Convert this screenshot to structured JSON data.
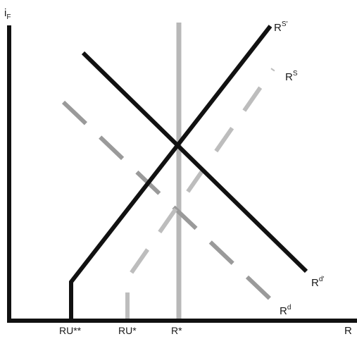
{
  "axes": {
    "y_label_main": "i",
    "y_label_sub": "F",
    "x_label": "R"
  },
  "ticks": {
    "ru_double_star": "RU**",
    "ru_star": "RU*",
    "r_star": "R*"
  },
  "curves": {
    "rs_prime": {
      "base": "R",
      "sup": "S′"
    },
    "rs": {
      "base": "R",
      "sup": "S"
    },
    "rd_prime": {
      "base": "R",
      "sup": "d′"
    },
    "rd": {
      "base": "R",
      "sup": "d"
    }
  },
  "colors": {
    "axis": "#111111",
    "solid_curve": "#111111",
    "dashed_curve": "#9a9a9a",
    "vertical_line": "#b8b8b8"
  }
}
